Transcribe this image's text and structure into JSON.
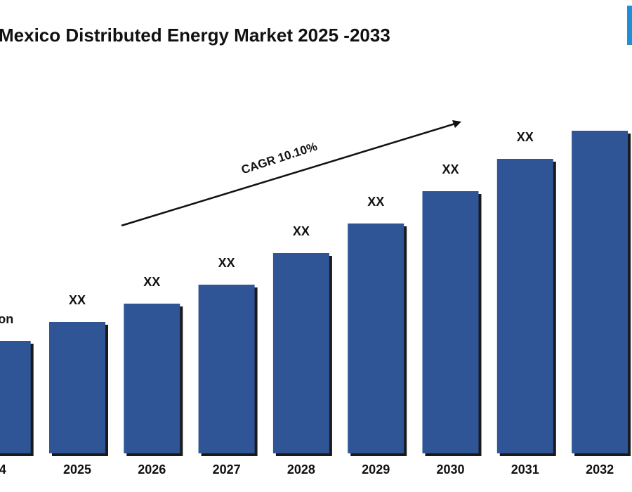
{
  "chart_data": {
    "type": "bar",
    "title": "Mexico Distributed Energy Market  2025 -2033",
    "annotation": "CAGR 10.10%",
    "categories": [
      "4",
      "2025",
      "2026",
      "2027",
      "2028",
      "2029",
      "2030",
      "2031",
      "2032"
    ],
    "values": [
      160,
      187,
      213,
      240,
      285,
      327,
      373,
      419,
      459
    ],
    "value_labels": [
      "Billion",
      "XX",
      "XX",
      "XX",
      "XX",
      "XX",
      "XX",
      "XX",
      null
    ],
    "color": "#2f5597"
  }
}
